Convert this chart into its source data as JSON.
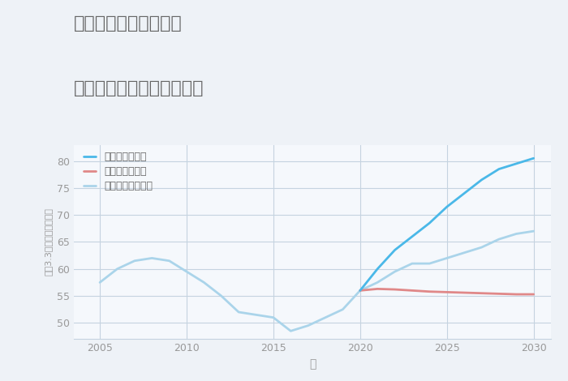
{
  "title_line1": "三重県鈴鹿市越知町の",
  "title_line2": "中古マンションの価格推移",
  "xlabel": "年",
  "ylabel": "坪（3.3㎡）単価（万円）",
  "bg_color": "#eef2f7",
  "plot_bg_color": "#f5f8fc",
  "grid_color": "#c5d3e0",
  "xlim": [
    2003.5,
    2031
  ],
  "ylim": [
    47,
    83
  ],
  "xticks": [
    2005,
    2010,
    2015,
    2020,
    2025,
    2030
  ],
  "yticks": [
    50,
    55,
    60,
    65,
    70,
    75,
    80
  ],
  "good_x": [
    2020,
    2021,
    2022,
    2023,
    2024,
    2025,
    2026,
    2027,
    2028,
    2029,
    2030
  ],
  "good_y": [
    56.0,
    60.0,
    63.5,
    66.0,
    68.5,
    71.5,
    74.0,
    76.5,
    78.5,
    79.5,
    80.5
  ],
  "bad_x": [
    2020,
    2021,
    2022,
    2023,
    2024,
    2025,
    2026,
    2027,
    2028,
    2029,
    2030
  ],
  "bad_y": [
    56.0,
    56.3,
    56.2,
    56.0,
    55.8,
    55.7,
    55.6,
    55.5,
    55.4,
    55.3,
    55.3
  ],
  "normal_x": [
    2005,
    2006,
    2007,
    2008,
    2009,
    2010,
    2011,
    2012,
    2013,
    2014,
    2015,
    2016,
    2017,
    2018,
    2019,
    2020,
    2021,
    2022,
    2023,
    2024,
    2025,
    2026,
    2027,
    2028,
    2029,
    2030
  ],
  "normal_y": [
    57.5,
    60.0,
    61.5,
    62.0,
    61.5,
    59.5,
    57.5,
    55.0,
    52.0,
    51.5,
    51.0,
    48.5,
    49.5,
    51.0,
    52.5,
    56.0,
    57.5,
    59.5,
    61.0,
    61.0,
    62.0,
    63.0,
    64.0,
    65.5,
    66.5,
    67.0
  ],
  "good_color": "#4ab8e8",
  "bad_color": "#e08888",
  "normal_color": "#aad4ea",
  "good_label": "グッドシナリオ",
  "bad_label": "バッドシナリオ",
  "normal_label": "ノーマルシナリオ",
  "title_color": "#666666",
  "axis_color": "#999999",
  "linewidth": 2.0
}
